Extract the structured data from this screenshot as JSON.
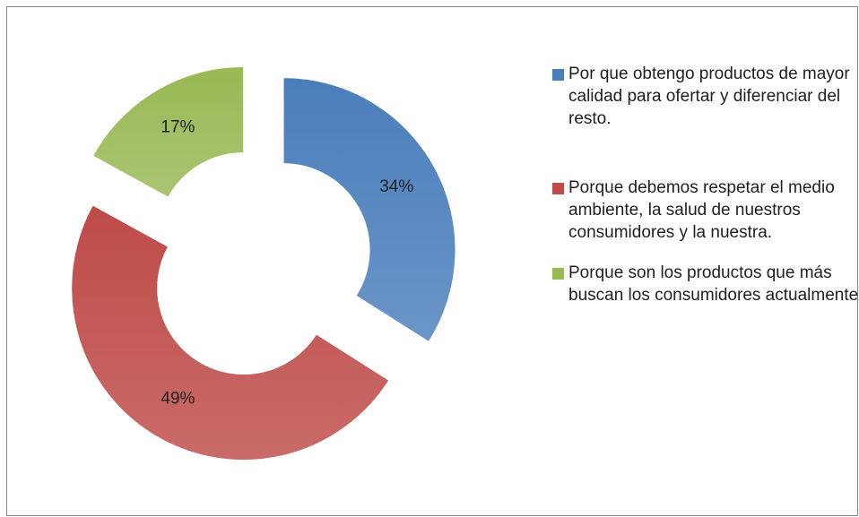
{
  "chart_data": {
    "type": "pie",
    "categories": [
      "Por que obtengo productos de mayor calidad para ofertar y diferenciar del resto.",
      "Porque debemos respetar el medio ambiente, la salud de nuestros consumidores y la nuestra.",
      "Porque son los productos que más buscan los consumidores actualmente"
    ],
    "values": [
      34,
      49,
      17
    ],
    "value_labels": [
      "34%",
      "49%",
      "17%"
    ],
    "colors": [
      "#4a7ebb",
      "#be4b48",
      "#98b954"
    ],
    "donut": true,
    "exploded": true
  }
}
